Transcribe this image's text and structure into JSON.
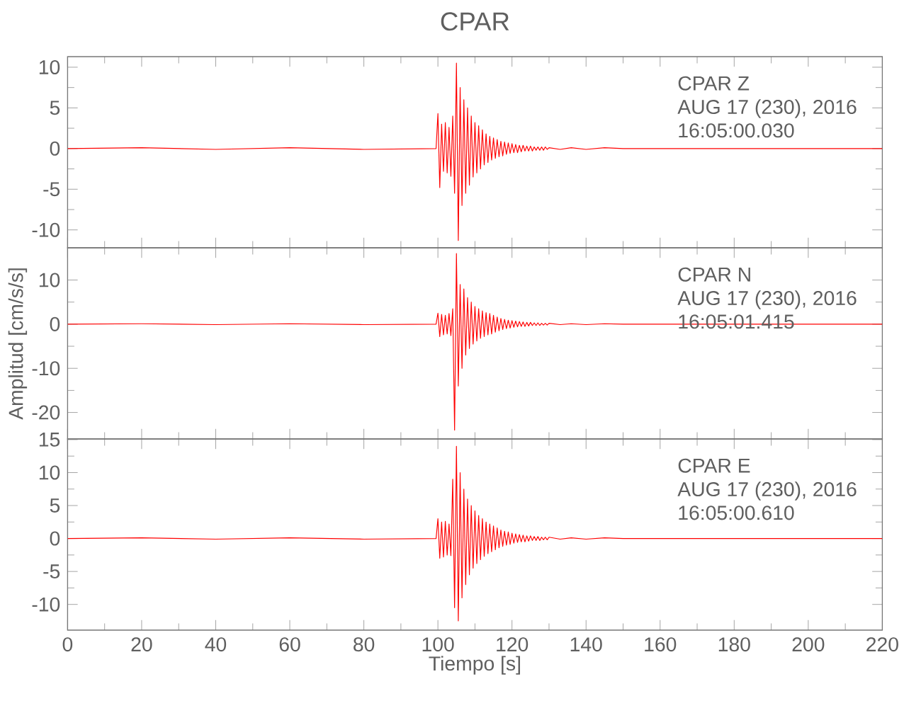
{
  "chart_data": [
    {
      "type": "line",
      "title": "CPAR",
      "tick_labels": "y",
      "xlim": [
        0,
        220
      ],
      "xticks": [
        0,
        20,
        40,
        60,
        80,
        100,
        120,
        140,
        160,
        180,
        200,
        220
      ],
      "ylim": [
        -12.2,
        11.3
      ],
      "yticks": [
        -10,
        -5,
        0,
        5,
        10
      ],
      "annotations": [
        "CPAR   Z",
        "AUG 17 (230), 2016",
        "16:05:00.030"
      ],
      "x": [
        0,
        20,
        40,
        60,
        80,
        99.5,
        100,
        100.5,
        101,
        101.5,
        102,
        102.5,
        103,
        103.5,
        104,
        104.5,
        105,
        105.5,
        106,
        106.5,
        107,
        107.5,
        108,
        108.5,
        109,
        109.5,
        110,
        110.5,
        111,
        111.5,
        112,
        112.5,
        113,
        113.5,
        114,
        114.5,
        115,
        115.5,
        116,
        116.5,
        117,
        117.5,
        118,
        118.5,
        119,
        119.5,
        120,
        120.5,
        121,
        121.5,
        122,
        122.5,
        123,
        123.5,
        124,
        124.5,
        125,
        125.5,
        126,
        126.5,
        127,
        127.5,
        128,
        128.5,
        129,
        129.5,
        130,
        133,
        136,
        140,
        145,
        150,
        160,
        180,
        200,
        220
      ],
      "series": [
        {
          "color": "#ff0000",
          "values": [
            0,
            0.1,
            -0.1,
            0.1,
            -0.1,
            0,
            4.3,
            -4.8,
            3.0,
            -2.8,
            3.2,
            -3.0,
            2.6,
            -3.4,
            4.0,
            -5.5,
            10.5,
            -11.3,
            7.5,
            -7.0,
            6.0,
            -5.5,
            5.0,
            -4.5,
            4.0,
            -3.5,
            3.2,
            -3.0,
            2.8,
            -2.5,
            2.3,
            -2.0,
            1.8,
            -1.7,
            1.5,
            -1.4,
            1.3,
            -1.2,
            1.1,
            -1.0,
            0.9,
            -0.9,
            0.8,
            -0.7,
            0.7,
            -0.6,
            0.6,
            -0.5,
            0.5,
            -0.5,
            0.4,
            -0.4,
            0.4,
            -0.3,
            0.3,
            -0.3,
            0.3,
            -0.3,
            0.2,
            -0.2,
            0.2,
            -0.2,
            0.2,
            -0.2,
            0.2,
            -0.1,
            0.1,
            -0.1,
            0.1,
            -0.1,
            0.1,
            0,
            0,
            0,
            0,
            0
          ]
        }
      ]
    },
    {
      "type": "line",
      "ylabel": "Amplitud [cm/s/s]",
      "tick_labels": "y",
      "xlim": [
        0,
        220
      ],
      "xticks": [
        0,
        20,
        40,
        60,
        80,
        100,
        120,
        140,
        160,
        180,
        200,
        220
      ],
      "ylim": [
        -26,
        17.3
      ],
      "yticks": [
        -20,
        -10,
        0,
        10
      ],
      "annotations": [
        "CPAR   N",
        "AUG 17 (230), 2016",
        "16:05:01.415"
      ],
      "x": [
        0,
        20,
        40,
        60,
        80,
        99.5,
        100,
        100.5,
        101,
        101.5,
        102,
        102.5,
        103,
        103.5,
        104,
        104.5,
        105,
        105.5,
        106,
        106.5,
        107,
        107.5,
        108,
        108.5,
        109,
        109.5,
        110,
        110.5,
        111,
        111.5,
        112,
        112.5,
        113,
        113.5,
        114,
        114.5,
        115,
        115.5,
        116,
        116.5,
        117,
        117.5,
        118,
        118.5,
        119,
        119.5,
        120,
        120.5,
        121,
        121.5,
        122,
        122.5,
        123,
        123.5,
        124,
        124.5,
        125,
        125.5,
        126,
        126.5,
        127,
        127.5,
        128,
        128.5,
        129,
        129.5,
        130,
        133,
        136,
        140,
        145,
        150,
        160,
        180,
        200,
        220
      ],
      "series": [
        {
          "color": "#ff0000",
          "values": [
            0,
            0.1,
            -0.1,
            0.1,
            -0.1,
            0,
            2.5,
            -2.8,
            2.2,
            -2.4,
            2.0,
            -2.2,
            2.4,
            -2.6,
            3.5,
            -24,
            16,
            -14,
            9,
            -10,
            8,
            -7,
            6,
            -5.5,
            5,
            -4.5,
            4,
            -3.8,
            3.5,
            -3.2,
            3,
            -2.8,
            2.6,
            -2.4,
            2.4,
            -2.2,
            2,
            -1.8,
            1.6,
            -1.5,
            1.3,
            -1.2,
            1.1,
            -1,
            0.9,
            -0.9,
            0.8,
            -0.7,
            0.7,
            -0.6,
            0.6,
            -0.5,
            0.5,
            -0.5,
            0.4,
            -0.4,
            0.4,
            -0.3,
            0.3,
            -0.3,
            0.3,
            -0.3,
            0.2,
            -0.2,
            0.2,
            -0.2,
            0.2,
            -0.1,
            0.1,
            -0.1,
            0.1,
            0,
            0,
            0,
            0,
            0
          ]
        }
      ]
    },
    {
      "type": "line",
      "xlabel": "Tiempo [s]",
      "xlim": [
        0,
        220
      ],
      "xticks": [
        0,
        20,
        40,
        60,
        80,
        100,
        120,
        140,
        160,
        180,
        200,
        220
      ],
      "ylim": [
        -13.9,
        15.1
      ],
      "yticks": [
        -10,
        -5,
        0,
        5,
        10,
        15
      ],
      "annotations": [
        "CPAR   E",
        "AUG 17 (230), 2016",
        "16:05:00.610"
      ],
      "x": [
        0,
        20,
        40,
        60,
        80,
        99.5,
        100,
        100.5,
        101,
        101.5,
        102,
        102.5,
        103,
        103.5,
        104,
        104.5,
        105,
        105.5,
        106,
        106.5,
        107,
        107.5,
        108,
        108.5,
        109,
        109.5,
        110,
        110.5,
        111,
        111.5,
        112,
        112.5,
        113,
        113.5,
        114,
        114.5,
        115,
        115.5,
        116,
        116.5,
        117,
        117.5,
        118,
        118.5,
        119,
        119.5,
        120,
        120.5,
        121,
        121.5,
        122,
        122.5,
        123,
        123.5,
        124,
        124.5,
        125,
        125.5,
        126,
        126.5,
        127,
        127.5,
        128,
        128.5,
        129,
        129.5,
        130,
        133,
        136,
        140,
        145,
        150,
        160,
        180,
        200,
        220
      ],
      "series": [
        {
          "color": "#ff0000",
          "values": [
            0,
            0.1,
            -0.1,
            0.1,
            -0.1,
            0,
            3,
            -3,
            2.5,
            -2.8,
            2.6,
            -2.5,
            2.2,
            -2.6,
            9,
            -10.5,
            14,
            -12.5,
            10,
            -9,
            7.5,
            -7,
            6,
            -5.5,
            5,
            -4.5,
            4.2,
            -3.8,
            3.5,
            -3.2,
            3,
            -2.7,
            2.5,
            -2.3,
            2.2,
            -2,
            1.9,
            -1.7,
            1.6,
            -1.4,
            1.3,
            -1.2,
            1.1,
            -1,
            1,
            -0.9,
            0.8,
            -0.7,
            0.7,
            -0.6,
            0.6,
            -0.5,
            0.5,
            -0.5,
            0.4,
            -0.4,
            0.4,
            -0.3,
            0.3,
            -0.3,
            0.3,
            -0.3,
            0.2,
            -0.2,
            0.2,
            -0.2,
            0.2,
            -0.1,
            0.1,
            -0.1,
            0.1,
            0,
            0,
            0,
            0,
            0
          ]
        }
      ]
    }
  ]
}
